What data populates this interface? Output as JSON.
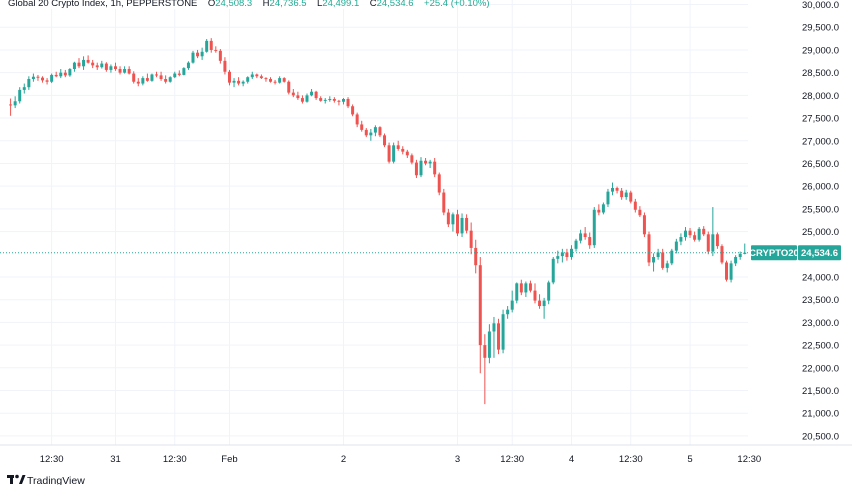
{
  "legend": {
    "title": "Global 20 Crypto Index, 1h, PEPPERSTONE",
    "o_label": "O",
    "o_value": "24,508.3",
    "h_label": "H",
    "h_value": "24,736.5",
    "l_label": "L",
    "l_value": "24,499.1",
    "c_label": "C",
    "c_value": "24,534.6",
    "change": "+25.4 (+0.10%)"
  },
  "price_tag": {
    "symbol": "CRYPTO20",
    "value": "24,534.6"
  },
  "branding": {
    "name": "TradingView"
  },
  "colors": {
    "up": "#26a69a",
    "down": "#ef5350",
    "grid": "#f0f3fa",
    "last_line": "#26a69a",
    "tag_bg": "#26a69a"
  },
  "chart_data": {
    "type": "candlestick",
    "title": "Global 20 Crypto Index, 1h, PEPPERSTONE",
    "ylim": [
      20300,
      30100
    ],
    "y_ticks": [
      30000,
      29500,
      29000,
      28500,
      28000,
      27500,
      27000,
      26500,
      26000,
      25500,
      25000,
      24000,
      23500,
      23000,
      22500,
      22000,
      21500,
      21000,
      20500
    ],
    "y_tick_labels": [
      "30,000.0",
      "29,500.0",
      "29,000.0",
      "28,500.0",
      "28,000.0",
      "27,500.0",
      "27,000.0",
      "26,500.0",
      "26,000.0",
      "25,500.0",
      "25,000.0",
      "24,000.0",
      "23,500.0",
      "23,000.0",
      "22,500.0",
      "22,000.0",
      "21,500.0",
      "21,000.0",
      "20,500.0"
    ],
    "x_labels": [
      {
        "bar": 9,
        "label": "12:30"
      },
      {
        "bar": 23,
        "label": "31"
      },
      {
        "bar": 36,
        "label": "12:30"
      },
      {
        "bar": 48,
        "label": "Feb"
      },
      {
        "bar": 73,
        "label": "2"
      },
      {
        "bar": 98,
        "label": "3"
      },
      {
        "bar": 110,
        "label": "12:30"
      },
      {
        "bar": 123,
        "label": "4"
      },
      {
        "bar": 136,
        "label": "12:30"
      },
      {
        "bar": 149,
        "label": "5"
      },
      {
        "bar": 162,
        "label": "12:30"
      }
    ],
    "last_price": 24534.6,
    "candles": [
      [
        27800,
        27930,
        27550,
        27780
      ],
      [
        27780,
        27980,
        27720,
        27870
      ],
      [
        27870,
        28180,
        27820,
        28120
      ],
      [
        28120,
        28260,
        28040,
        28180
      ],
      [
        28180,
        28420,
        28120,
        28360
      ],
      [
        28360,
        28480,
        28300,
        28410
      ],
      [
        28410,
        28450,
        28320,
        28390
      ],
      [
        28390,
        28420,
        28280,
        28330
      ],
      [
        28330,
        28380,
        28240,
        28300
      ],
      [
        28300,
        28480,
        28270,
        28450
      ],
      [
        28450,
        28520,
        28400,
        28420
      ],
      [
        28420,
        28580,
        28380,
        28500
      ],
      [
        28500,
        28560,
        28400,
        28440
      ],
      [
        28440,
        28600,
        28410,
        28580
      ],
      [
        28580,
        28740,
        28520,
        28720
      ],
      [
        28720,
        28820,
        28600,
        28640
      ],
      [
        28640,
        28860,
        28560,
        28780
      ],
      [
        28780,
        28880,
        28700,
        28720
      ],
      [
        28720,
        28780,
        28600,
        28660
      ],
      [
        28660,
        28720,
        28560,
        28620
      ],
      [
        28620,
        28760,
        28590,
        28700
      ],
      [
        28700,
        28730,
        28520,
        28560
      ],
      [
        28560,
        28680,
        28500,
        28640
      ],
      [
        28640,
        28720,
        28540,
        28580
      ],
      [
        28580,
        28640,
        28460,
        28500
      ],
      [
        28500,
        28640,
        28480,
        28580
      ],
      [
        28580,
        28640,
        28460,
        28480
      ],
      [
        28480,
        28530,
        28260,
        28300
      ],
      [
        28300,
        28380,
        28200,
        28260
      ],
      [
        28260,
        28420,
        28220,
        28380
      ],
      [
        28380,
        28480,
        28300,
        28320
      ],
      [
        28320,
        28480,
        28300,
        28460
      ],
      [
        28460,
        28520,
        28400,
        28440
      ],
      [
        28440,
        28520,
        28320,
        28360
      ],
      [
        28360,
        28440,
        28260,
        28300
      ],
      [
        28300,
        28420,
        28280,
        28400
      ],
      [
        28400,
        28520,
        28380,
        28480
      ],
      [
        28480,
        28550,
        28420,
        28450
      ],
      [
        28450,
        28620,
        28440,
        28600
      ],
      [
        28600,
        28750,
        28560,
        28720
      ],
      [
        28720,
        28980,
        28700,
        28940
      ],
      [
        28940,
        29000,
        28820,
        28860
      ],
      [
        28860,
        29050,
        28780,
        28960
      ],
      [
        28960,
        29240,
        28940,
        29200
      ],
      [
        29200,
        29260,
        28940,
        29000
      ],
      [
        29000,
        29080,
        28940,
        28980
      ],
      [
        28980,
        29020,
        28700,
        28760
      ],
      [
        28760,
        28840,
        28460,
        28520
      ],
      [
        28520,
        28560,
        28220,
        28280
      ],
      [
        28280,
        28380,
        28180,
        28320
      ],
      [
        28320,
        28400,
        28220,
        28260
      ],
      [
        28260,
        28330,
        28200,
        28300
      ],
      [
        28300,
        28420,
        28260,
        28400
      ],
      [
        28400,
        28520,
        28360,
        28460
      ],
      [
        28460,
        28480,
        28380,
        28420
      ],
      [
        28420,
        28460,
        28360,
        28380
      ],
      [
        28380,
        28400,
        28300,
        28360
      ],
      [
        28360,
        28400,
        28280,
        28300
      ],
      [
        28300,
        28340,
        28240,
        28280
      ],
      [
        28280,
        28420,
        28260,
        28380
      ],
      [
        28380,
        28400,
        28280,
        28300
      ],
      [
        28300,
        28330,
        28020,
        28060
      ],
      [
        28060,
        28140,
        27960,
        28000
      ],
      [
        28000,
        28080,
        27900,
        27940
      ],
      [
        27940,
        28000,
        27820,
        27860
      ],
      [
        27860,
        28040,
        27840,
        28000
      ],
      [
        28000,
        28140,
        27980,
        28080
      ],
      [
        28080,
        28100,
        27900,
        27940
      ],
      [
        27940,
        27980,
        27860,
        27880
      ],
      [
        27880,
        27940,
        27820,
        27900
      ],
      [
        27900,
        27980,
        27860,
        27920
      ],
      [
        27920,
        27960,
        27840,
        27880
      ],
      [
        27880,
        27900,
        27780,
        27860
      ],
      [
        27860,
        27940,
        27800,
        27920
      ],
      [
        27920,
        27960,
        27720,
        27760
      ],
      [
        27760,
        27800,
        27540,
        27580
      ],
      [
        27580,
        27620,
        27300,
        27360
      ],
      [
        27360,
        27440,
        27200,
        27240
      ],
      [
        27240,
        27280,
        27080,
        27120
      ],
      [
        27120,
        27260,
        27000,
        27180
      ],
      [
        27180,
        27340,
        27100,
        27300
      ],
      [
        27300,
        27320,
        27080,
        27120
      ],
      [
        27120,
        27160,
        26860,
        26900
      ],
      [
        26900,
        26960,
        26500,
        26540
      ],
      [
        26540,
        26960,
        26500,
        26900
      ],
      [
        26900,
        27000,
        26780,
        26820
      ],
      [
        26820,
        26880,
        26700,
        26760
      ],
      [
        26760,
        26800,
        26620,
        26680
      ],
      [
        26680,
        26720,
        26480,
        26520
      ],
      [
        26520,
        26580,
        26180,
        26240
      ],
      [
        26240,
        26640,
        26200,
        26560
      ],
      [
        26560,
        26620,
        26460,
        26500
      ],
      [
        26500,
        26580,
        26400,
        26540
      ],
      [
        26540,
        26620,
        26200,
        26260
      ],
      [
        26260,
        26300,
        25800,
        25860
      ],
      [
        25860,
        25940,
        25360,
        25420
      ],
      [
        25420,
        25500,
        25100,
        25160
      ],
      [
        25160,
        25420,
        25000,
        25380
      ],
      [
        25380,
        25480,
        24900,
        24960
      ],
      [
        24960,
        25400,
        24880,
        25300
      ],
      [
        25300,
        25380,
        24960,
        25020
      ],
      [
        25020,
        25200,
        24500,
        24640
      ],
      [
        24640,
        24820,
        24080,
        24260
      ],
      [
        24260,
        24440,
        21880,
        22500
      ],
      [
        22500,
        22740,
        21200,
        22220
      ],
      [
        22220,
        22960,
        22100,
        22800
      ],
      [
        22800,
        23120,
        22220,
        22980
      ],
      [
        22980,
        23080,
        22300,
        22400
      ],
      [
        22400,
        23280,
        22320,
        23180
      ],
      [
        23180,
        23360,
        23080,
        23280
      ],
      [
        23280,
        23700,
        23220,
        23480
      ],
      [
        23480,
        23880,
        23420,
        23860
      ],
      [
        23860,
        23940,
        23600,
        23660
      ],
      [
        23660,
        23900,
        23560,
        23860
      ],
      [
        23860,
        23920,
        23660,
        23700
      ],
      [
        23700,
        23860,
        23420,
        23480
      ],
      [
        23480,
        23620,
        23300,
        23360
      ],
      [
        23360,
        23540,
        23080,
        23480
      ],
      [
        23480,
        23920,
        23400,
        23880
      ],
      [
        23880,
        24440,
        23840,
        24400
      ],
      [
        24400,
        24580,
        24300,
        24460
      ],
      [
        24460,
        24620,
        24320,
        24540
      ],
      [
        24540,
        24620,
        24360,
        24440
      ],
      [
        24440,
        24700,
        24380,
        24620
      ],
      [
        24620,
        24840,
        24560,
        24800
      ],
      [
        24800,
        25040,
        24740,
        24960
      ],
      [
        24960,
        25100,
        24820,
        24880
      ],
      [
        24880,
        24980,
        24620,
        24700
      ],
      [
        24700,
        25540,
        24640,
        25480
      ],
      [
        25480,
        25600,
        25360,
        25420
      ],
      [
        25420,
        25640,
        25380,
        25600
      ],
      [
        25600,
        25940,
        25540,
        25880
      ],
      [
        25880,
        26080,
        25800,
        25960
      ],
      [
        25960,
        25990,
        25840,
        25900
      ],
      [
        25900,
        25960,
        25700,
        25760
      ],
      [
        25760,
        25920,
        25700,
        25860
      ],
      [
        25860,
        25900,
        25620,
        25660
      ],
      [
        25660,
        25720,
        25420,
        25480
      ],
      [
        25480,
        25560,
        25320,
        25360
      ],
      [
        25360,
        25420,
        24880,
        24940
      ],
      [
        24940,
        25000,
        24240,
        24320
      ],
      [
        24320,
        24520,
        24120,
        24440
      ],
      [
        24440,
        24620,
        24380,
        24540
      ],
      [
        24540,
        24620,
        24160,
        24200
      ],
      [
        24200,
        24360,
        24100,
        24300
      ],
      [
        24300,
        24620,
        24260,
        24580
      ],
      [
        24580,
        24840,
        24520,
        24780
      ],
      [
        24780,
        24960,
        24700,
        24880
      ],
      [
        24880,
        25100,
        24800,
        25020
      ],
      [
        25020,
        25080,
        24860,
        24920
      ],
      [
        24920,
        25000,
        24780,
        24820
      ],
      [
        24820,
        25100,
        24780,
        25060
      ],
      [
        25060,
        25120,
        24900,
        24940
      ],
      [
        24940,
        25000,
        24500,
        24560
      ],
      [
        24560,
        25540,
        24460,
        24940
      ],
      [
        24940,
        24980,
        24620,
        24680
      ],
      [
        24680,
        24720,
        24280,
        24320
      ],
      [
        24320,
        24360,
        23900,
        23940
      ],
      [
        23940,
        24360,
        23880,
        24300
      ],
      [
        24300,
        24480,
        24240,
        24440
      ],
      [
        24440,
        24560,
        24380,
        24508.3
      ],
      [
        24508.3,
        24736.5,
        24499.1,
        24534.6
      ]
    ]
  }
}
